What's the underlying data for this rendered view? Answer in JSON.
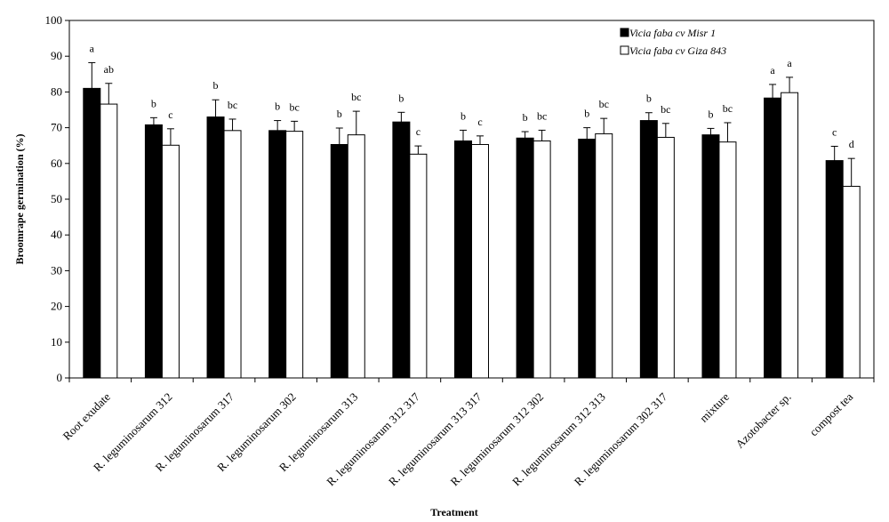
{
  "chart_data": {
    "type": "bar",
    "xlabel": "Treatment",
    "ylabel": "Broomrape germination (%)",
    "ylim": [
      0,
      100
    ],
    "ytick_step": 10,
    "grid": false,
    "legend_position": "top-right",
    "categories": [
      "Root exudate",
      "R. leguminosarum 312",
      "R. leguminosarum 317",
      "R. leguminosarum 302",
      "R. leguminosarum 313",
      "R. leguminosarum 312  317",
      "R. leguminosarum 313  317",
      "R. leguminosarum 312  302",
      "R. leguminosarum 312  313",
      "R. leguminosarum 302  317",
      "mixture",
      "Azotobacter sp.",
      "compost tea"
    ],
    "series": [
      {
        "name": "Vicia faba cv Misr 1",
        "color": "#000000",
        "values": [
          81,
          70.8,
          73,
          69.2,
          65.3,
          71.6,
          66.3,
          67.1,
          66.8,
          72,
          68,
          78.3,
          60.8
        ],
        "errors": [
          7.2,
          2,
          4.8,
          2.8,
          4.6,
          2.7,
          3,
          1.8,
          3.2,
          2.2,
          1.8,
          3.8,
          4
        ],
        "significance": [
          "a",
          "b",
          "b",
          "b",
          "b",
          "b",
          "b",
          "b",
          "b",
          "b",
          "b",
          "a",
          "c"
        ]
      },
      {
        "name": "Vicia faba cv Giza 843",
        "color": "#ffffff",
        "values": [
          76.6,
          65.1,
          69.2,
          69,
          68,
          62.6,
          65.3,
          66.3,
          68.3,
          67.3,
          66,
          79.8,
          53.6
        ],
        "errors": [
          5.8,
          4.6,
          3.2,
          2.8,
          6.6,
          2.3,
          2.4,
          3,
          4.3,
          3.9,
          5.4,
          4.3,
          7.8
        ],
        "significance": [
          "ab",
          "c",
          "bc",
          "bc",
          "bc",
          "c",
          "c",
          "bc",
          "bc",
          "bc",
          "bc",
          "a",
          "d"
        ]
      }
    ]
  }
}
